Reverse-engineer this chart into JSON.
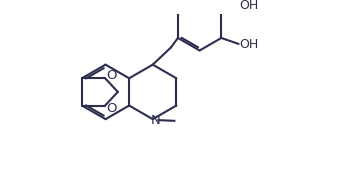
{
  "background_color": "#ffffff",
  "line_color": "#2d2d4e",
  "line_width": 1.5,
  "font_size": 9.5,
  "fig_width": 3.64,
  "fig_height": 1.84,
  "xlim": [
    0,
    10
  ],
  "ylim": [
    0,
    5.1
  ]
}
